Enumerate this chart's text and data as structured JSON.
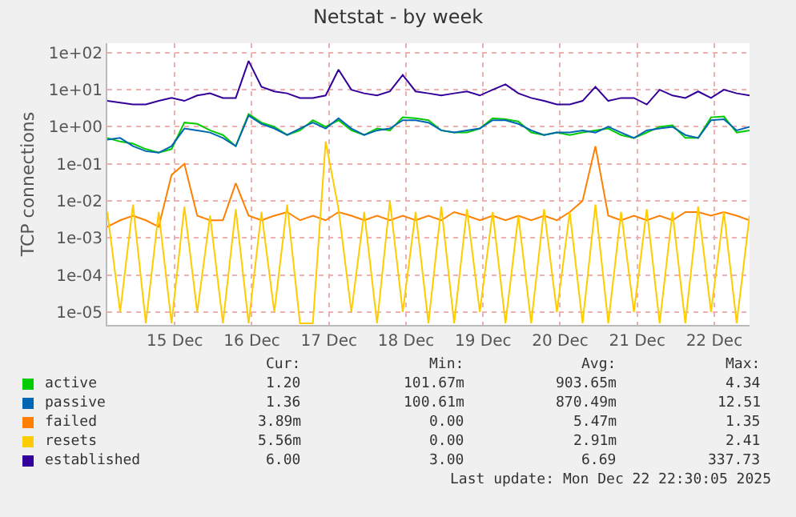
{
  "chart_data": {
    "type": "line",
    "title": "Netstat - by week",
    "ylabel": "TCP connections",
    "x": [
      "2025-12-14T15:00",
      "2025-12-14T19:00",
      "2025-12-14T23:00",
      "2025-12-15T03:00",
      "2025-12-15T07:00",
      "2025-12-15T11:00",
      "2025-12-15T15:00",
      "2025-12-15T19:00",
      "2025-12-15T23:00",
      "2025-12-16T03:00",
      "2025-12-16T07:00",
      "2025-12-16T11:00",
      "2025-12-16T15:00",
      "2025-12-16T19:00",
      "2025-12-16T23:00",
      "2025-12-17T03:00",
      "2025-12-17T07:00",
      "2025-12-17T11:00",
      "2025-12-17T15:00",
      "2025-12-17T19:00",
      "2025-12-17T23:00",
      "2025-12-18T03:00",
      "2025-12-18T07:00",
      "2025-12-18T11:00",
      "2025-12-18T15:00",
      "2025-12-18T19:00",
      "2025-12-18T23:00",
      "2025-12-19T03:00",
      "2025-12-19T07:00",
      "2025-12-19T11:00",
      "2025-12-19T15:00",
      "2025-12-19T19:00",
      "2025-12-19T23:00",
      "2025-12-20T03:00",
      "2025-12-20T07:00",
      "2025-12-20T11:00",
      "2025-12-20T15:00",
      "2025-12-20T19:00",
      "2025-12-20T23:00",
      "2025-12-21T03:00",
      "2025-12-21T07:00",
      "2025-12-21T11:00",
      "2025-12-21T15:00",
      "2025-12-21T19:00",
      "2025-12-21T23:00",
      "2025-12-22T03:00",
      "2025-12-22T07:00",
      "2025-12-22T11:00",
      "2025-12-22T15:00",
      "2025-12-22T19:00",
      "2025-12-22T23:00"
    ],
    "series": [
      {
        "name": "active",
        "color": "#00cc00",
        "values": [
          0.5,
          0.4,
          0.35,
          0.25,
          0.2,
          0.25,
          1.3,
          1.2,
          0.8,
          0.6,
          0.3,
          2.2,
          1.3,
          1.0,
          0.6,
          0.8,
          1.5,
          1.0,
          1.5,
          0.8,
          0.6,
          0.9,
          0.8,
          1.8,
          1.7,
          1.5,
          0.8,
          0.7,
          0.7,
          0.9,
          1.7,
          1.6,
          1.4,
          0.7,
          0.6,
          0.7,
          0.6,
          0.7,
          0.8,
          0.9,
          0.6,
          0.5,
          0.7,
          1.0,
          1.1,
          0.5,
          0.5,
          1.8,
          1.9,
          0.7,
          0.8
        ]
      },
      {
        "name": "passive",
        "color": "#0066b3",
        "values": [
          0.45,
          0.5,
          0.3,
          0.22,
          0.2,
          0.3,
          0.9,
          0.8,
          0.7,
          0.5,
          0.3,
          2.0,
          1.2,
          0.9,
          0.6,
          0.9,
          1.3,
          0.9,
          1.7,
          0.9,
          0.6,
          0.8,
          0.9,
          1.5,
          1.5,
          1.3,
          0.8,
          0.7,
          0.8,
          0.9,
          1.5,
          1.5,
          1.2,
          0.8,
          0.6,
          0.7,
          0.7,
          0.8,
          0.7,
          1.0,
          0.7,
          0.5,
          0.8,
          0.9,
          1.0,
          0.6,
          0.5,
          1.5,
          1.6,
          0.8,
          1.0
        ]
      },
      {
        "name": "failed",
        "color": "#ff8000",
        "values": [
          0.002,
          0.003,
          0.004,
          0.003,
          0.002,
          0.05,
          0.1,
          0.004,
          0.003,
          0.003,
          0.03,
          0.004,
          0.003,
          0.004,
          0.005,
          0.003,
          0.004,
          0.003,
          0.005,
          0.004,
          0.003,
          0.004,
          0.003,
          0.004,
          0.003,
          0.004,
          0.003,
          0.005,
          0.004,
          0.003,
          0.004,
          0.003,
          0.004,
          0.003,
          0.004,
          0.003,
          0.005,
          0.01,
          0.3,
          0.004,
          0.003,
          0.004,
          0.003,
          0.004,
          0.003,
          0.005,
          0.005,
          0.004,
          0.005,
          0.004,
          0.003
        ]
      },
      {
        "name": "resets",
        "color": "#ffcc00",
        "values": [
          0.005,
          1e-05,
          0.008,
          5e-06,
          0.005,
          5e-06,
          0.007,
          1e-05,
          0.004,
          5e-06,
          0.006,
          5e-06,
          0.005,
          1e-05,
          0.008,
          5e-06,
          5e-06,
          0.4,
          0.006,
          1e-05,
          0.005,
          5e-06,
          0.01,
          1e-05,
          0.005,
          5e-06,
          0.007,
          5e-06,
          0.006,
          1e-05,
          0.005,
          5e-06,
          0.004,
          5e-06,
          0.006,
          1e-05,
          0.005,
          5e-06,
          0.008,
          5e-06,
          0.005,
          1e-05,
          0.006,
          5e-06,
          0.005,
          5e-06,
          0.007,
          1e-05,
          0.005,
          5e-06,
          0.004
        ]
      },
      {
        "name": "established",
        "color": "#330099",
        "values": [
          5,
          4.5,
          4,
          4,
          5,
          6,
          5,
          7,
          8,
          6,
          6,
          60,
          12,
          9,
          8,
          6,
          6,
          7,
          35,
          10,
          8,
          7,
          9,
          25,
          9,
          8,
          7,
          8,
          9,
          7,
          10,
          14,
          8,
          6,
          5,
          4,
          4,
          5,
          12,
          5,
          6,
          6,
          4,
          10,
          7,
          6,
          9,
          6,
          10,
          8,
          7
        ]
      }
    ],
    "log": true,
    "ylim": [
      4.5e-06,
      180
    ],
    "yticks": [
      {
        "value": 1e-05,
        "label": "1e-05"
      },
      {
        "value": 0.0001,
        "label": "1e-04"
      },
      {
        "value": 0.001,
        "label": "1e-03"
      },
      {
        "value": 0.01,
        "label": "1e-02"
      },
      {
        "value": 0.1,
        "label": "1e-01"
      },
      {
        "value": 1,
        "label": "1e+00"
      },
      {
        "value": 10,
        "label": "1e+01"
      },
      {
        "value": 100,
        "label": "1e+02"
      }
    ],
    "xlim": [
      "2025-12-14T15:00",
      "2025-12-22T23:00"
    ],
    "xticks": [
      {
        "value": "2025-12-15T12:00",
        "label": "15 Dec"
      },
      {
        "value": "2025-12-16T12:00",
        "label": "16 Dec"
      },
      {
        "value": "2025-12-17T12:00",
        "label": "17 Dec"
      },
      {
        "value": "2025-12-18T12:00",
        "label": "18 Dec"
      },
      {
        "value": "2025-12-19T12:00",
        "label": "19 Dec"
      },
      {
        "value": "2025-12-20T12:00",
        "label": "20 Dec"
      },
      {
        "value": "2025-12-21T12:00",
        "label": "21 Dec"
      },
      {
        "value": "2025-12-22T12:00",
        "label": "22 Dec"
      }
    ],
    "grid": true,
    "legend": "bottom left",
    "annotations": [
      "Cur:",
      "Min:",
      "Avg:",
      "Max:",
      "1.20",
      "101.67m",
      "903.65m",
      "4.34",
      "1.36",
      "100.61m",
      "870.49m",
      "12.51",
      "3.89m",
      "0.00",
      "5.47m",
      "1.35",
      "5.56m",
      "0.00",
      "2.91m",
      "2.41",
      "6.00",
      "3.00",
      "6.69",
      "337.73",
      "Last update: Mon Dec 22 22:30:05 2025"
    ]
  }
}
